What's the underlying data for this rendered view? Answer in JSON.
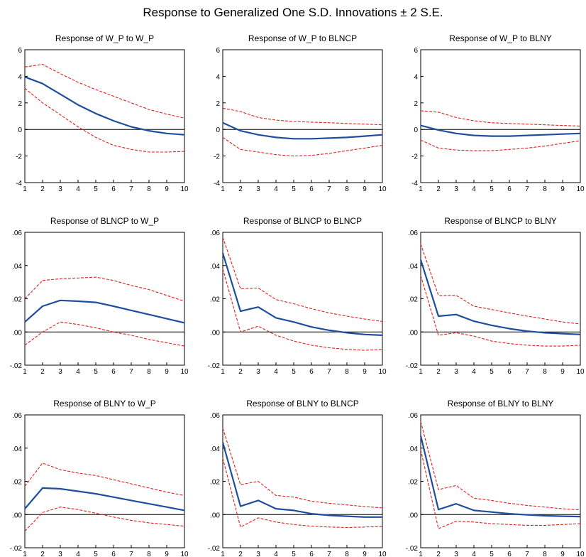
{
  "page": {
    "title": "Response to Generalized One S.D. Innovations ± 2 S.E."
  },
  "colors": {
    "response": "#1f4e9c",
    "band": "#e0201b",
    "axis": "#000000"
  },
  "chart_data": [
    {
      "type": "line",
      "title": "Response of W_P to W_P",
      "x": [
        1,
        2,
        3,
        4,
        5,
        6,
        7,
        8,
        9,
        10
      ],
      "xticks": [
        "1",
        "2",
        "3",
        "4",
        "5",
        "6",
        "7",
        "8",
        "9",
        "10"
      ],
      "ylim": [
        -4,
        6
      ],
      "yticks": [
        -4,
        -2,
        0,
        2,
        4,
        6
      ],
      "ytick_labels": [
        "-4",
        "-2",
        "0",
        "2",
        "4",
        "6"
      ],
      "series": [
        {
          "role": "response",
          "values": [
            3.95,
            3.45,
            2.65,
            1.85,
            1.2,
            0.65,
            0.2,
            -0.1,
            -0.3,
            -0.4
          ]
        },
        {
          "role": "upper",
          "values": [
            4.7,
            4.9,
            4.2,
            3.55,
            3.0,
            2.5,
            2.0,
            1.5,
            1.15,
            0.85
          ]
        },
        {
          "role": "lower",
          "values": [
            3.1,
            2.0,
            1.1,
            0.2,
            -0.6,
            -1.2,
            -1.5,
            -1.7,
            -1.7,
            -1.65
          ]
        }
      ]
    },
    {
      "type": "line",
      "title": "Response of W_P to BLNCP",
      "x": [
        1,
        2,
        3,
        4,
        5,
        6,
        7,
        8,
        9,
        10
      ],
      "xticks": [
        "1",
        "2",
        "3",
        "4",
        "5",
        "6",
        "7",
        "8",
        "9",
        "10"
      ],
      "ylim": [
        -4,
        6
      ],
      "yticks": [
        -4,
        -2,
        0,
        2,
        4,
        6
      ],
      "ytick_labels": [
        "-4",
        "-2",
        "0",
        "2",
        "4",
        "6"
      ],
      "series": [
        {
          "role": "response",
          "values": [
            0.5,
            -0.1,
            -0.4,
            -0.6,
            -0.7,
            -0.7,
            -0.65,
            -0.6,
            -0.5,
            -0.4
          ]
        },
        {
          "role": "upper",
          "values": [
            1.6,
            1.35,
            0.9,
            0.7,
            0.6,
            0.55,
            0.5,
            0.45,
            0.4,
            0.35
          ]
        },
        {
          "role": "lower",
          "values": [
            -0.6,
            -1.5,
            -1.7,
            -1.9,
            -2.0,
            -1.95,
            -1.8,
            -1.6,
            -1.4,
            -1.2
          ]
        }
      ]
    },
    {
      "type": "line",
      "title": "Response of W_P to BLNY",
      "x": [
        1,
        2,
        3,
        4,
        5,
        6,
        7,
        8,
        9,
        10
      ],
      "xticks": [
        "1",
        "2",
        "3",
        "4",
        "5",
        "6",
        "7",
        "8",
        "9",
        "10"
      ],
      "ylim": [
        -4,
        6
      ],
      "yticks": [
        -4,
        -2,
        0,
        2,
        4,
        6
      ],
      "ytick_labels": [
        "-4",
        "-2",
        "0",
        "2",
        "4",
        "6"
      ],
      "series": [
        {
          "role": "response",
          "values": [
            0.3,
            -0.05,
            -0.3,
            -0.45,
            -0.5,
            -0.5,
            -0.45,
            -0.4,
            -0.35,
            -0.3
          ]
        },
        {
          "role": "upper",
          "values": [
            1.4,
            1.3,
            0.9,
            0.65,
            0.5,
            0.45,
            0.4,
            0.35,
            0.3,
            0.25
          ]
        },
        {
          "role": "lower",
          "values": [
            -0.8,
            -1.4,
            -1.55,
            -1.6,
            -1.6,
            -1.5,
            -1.4,
            -1.25,
            -1.05,
            -0.85
          ]
        }
      ]
    },
    {
      "type": "line",
      "title": "Response of BLNCP to W_P",
      "x": [
        1,
        2,
        3,
        4,
        5,
        6,
        7,
        8,
        9,
        10
      ],
      "xticks": [
        "1",
        "2",
        "3",
        "4",
        "5",
        "6",
        "7",
        "8",
        "9",
        "10"
      ],
      "ylim": [
        -0.02,
        0.06
      ],
      "yticks": [
        -0.02,
        0,
        0.02,
        0.04,
        0.06
      ],
      "ytick_labels": [
        "-.02",
        ".00",
        ".02",
        ".04",
        ".06"
      ],
      "series": [
        {
          "role": "response",
          "values": [
            0.006,
            0.0155,
            0.019,
            0.0185,
            0.0178,
            0.0155,
            0.013,
            0.0105,
            0.008,
            0.0055
          ]
        },
        {
          "role": "upper",
          "values": [
            0.02,
            0.031,
            0.032,
            0.0325,
            0.033,
            0.031,
            0.028,
            0.0255,
            0.022,
            0.0185
          ]
        },
        {
          "role": "lower",
          "values": [
            -0.008,
            0.0,
            0.006,
            0.0045,
            0.0025,
            0.0,
            -0.002,
            -0.0045,
            -0.0065,
            -0.0085
          ]
        }
      ]
    },
    {
      "type": "line",
      "title": "Response of BLNCP to BLNCP",
      "x": [
        1,
        2,
        3,
        4,
        5,
        6,
        7,
        8,
        9,
        10
      ],
      "xticks": [
        "1",
        "2",
        "3",
        "4",
        "5",
        "6",
        "7",
        "8",
        "9",
        "10"
      ],
      "ylim": [
        -0.02,
        0.06
      ],
      "yticks": [
        -0.02,
        0,
        0.02,
        0.04,
        0.06
      ],
      "ytick_labels": [
        "-.02",
        ".00",
        ".02",
        ".04",
        ".06"
      ],
      "series": [
        {
          "role": "response",
          "values": [
            0.0475,
            0.0125,
            0.015,
            0.0085,
            0.006,
            0.003,
            0.001,
            -0.0005,
            -0.0015,
            -0.002
          ]
        },
        {
          "role": "upper",
          "values": [
            0.057,
            0.026,
            0.0265,
            0.0195,
            0.017,
            0.014,
            0.0115,
            0.0095,
            0.0078,
            0.0063
          ]
        },
        {
          "role": "lower",
          "values": [
            0.038,
            0.0,
            0.0035,
            -0.002,
            -0.0055,
            -0.008,
            -0.0095,
            -0.0105,
            -0.011,
            -0.0105
          ]
        }
      ]
    },
    {
      "type": "line",
      "title": "Response of BLNCP to BLNY",
      "x": [
        1,
        2,
        3,
        4,
        5,
        6,
        7,
        8,
        9,
        10
      ],
      "xticks": [
        "1",
        "2",
        "3",
        "4",
        "5",
        "6",
        "7",
        "8",
        "9",
        "10"
      ],
      "ylim": [
        -0.02,
        0.06
      ],
      "yticks": [
        -0.02,
        0,
        0.02,
        0.04,
        0.06
      ],
      "ytick_labels": [
        "-.02",
        ".00",
        ".02",
        ".04",
        ".06"
      ],
      "series": [
        {
          "role": "response",
          "values": [
            0.0435,
            0.0095,
            0.0105,
            0.0065,
            0.004,
            0.002,
            0.0005,
            -0.0005,
            -0.001,
            -0.0015
          ]
        },
        {
          "role": "upper",
          "values": [
            0.053,
            0.022,
            0.022,
            0.0155,
            0.0135,
            0.0115,
            0.0095,
            0.0078,
            0.006,
            0.0048
          ]
        },
        {
          "role": "lower",
          "values": [
            0.034,
            -0.002,
            -0.0005,
            -0.0025,
            -0.0055,
            -0.007,
            -0.008,
            -0.0085,
            -0.0085,
            -0.008
          ]
        }
      ]
    },
    {
      "type": "line",
      "title": "Response of BLNY to W_P",
      "x": [
        1,
        2,
        3,
        4,
        5,
        6,
        7,
        8,
        9,
        10
      ],
      "xticks": [
        "1",
        "2",
        "3",
        "4",
        "5",
        "6",
        "7",
        "8",
        "9",
        "10"
      ],
      "ylim": [
        -0.02,
        0.06
      ],
      "yticks": [
        -0.02,
        0,
        0.02,
        0.04,
        0.06
      ],
      "ytick_labels": [
        "-.02",
        ".00",
        ".02",
        ".04",
        ".06"
      ],
      "series": [
        {
          "role": "response",
          "values": [
            0.0035,
            0.016,
            0.0155,
            0.014,
            0.0125,
            0.0105,
            0.0085,
            0.0065,
            0.0045,
            0.0025
          ]
        },
        {
          "role": "upper",
          "values": [
            0.017,
            0.031,
            0.027,
            0.025,
            0.0235,
            0.021,
            0.0185,
            0.016,
            0.0135,
            0.0115
          ]
        },
        {
          "role": "lower",
          "values": [
            -0.01,
            0.0012,
            0.0045,
            0.003,
            0.0008,
            -0.0015,
            -0.0035,
            -0.005,
            -0.006,
            -0.007
          ]
        }
      ]
    },
    {
      "type": "line",
      "title": "Response of BLNY to BLNCP",
      "x": [
        1,
        2,
        3,
        4,
        5,
        6,
        7,
        8,
        9,
        10
      ],
      "xticks": [
        "1",
        "2",
        "3",
        "4",
        "5",
        "6",
        "7",
        "8",
        "9",
        "10"
      ],
      "ylim": [
        -0.02,
        0.06
      ],
      "yticks": [
        -0.02,
        0,
        0.02,
        0.04,
        0.06
      ],
      "ytick_labels": [
        "-.02",
        ".00",
        ".02",
        ".04",
        ".06"
      ],
      "series": [
        {
          "role": "response",
          "values": [
            0.0435,
            0.005,
            0.0085,
            0.0035,
            0.0025,
            0.0005,
            -0.0005,
            -0.001,
            -0.0015,
            -0.0015
          ]
        },
        {
          "role": "upper",
          "values": [
            0.052,
            0.018,
            0.02,
            0.0115,
            0.0105,
            0.008,
            0.0068,
            0.0058,
            0.0048,
            0.004
          ]
        },
        {
          "role": "lower",
          "values": [
            0.034,
            -0.0075,
            -0.002,
            -0.0045,
            -0.006,
            -0.007,
            -0.0075,
            -0.0078,
            -0.0075,
            -0.0072
          ]
        }
      ]
    },
    {
      "type": "line",
      "title": "Response of BLNY to BLNY",
      "x": [
        1,
        2,
        3,
        4,
        5,
        6,
        7,
        8,
        9,
        10
      ],
      "xticks": [
        "1",
        "2",
        "3",
        "4",
        "5",
        "6",
        "7",
        "8",
        "9",
        "10"
      ],
      "ylim": [
        -0.02,
        0.06
      ],
      "yticks": [
        -0.02,
        0,
        0.02,
        0.04,
        0.06
      ],
      "ytick_labels": [
        "-.02",
        ".00",
        ".02",
        ".04",
        ".06"
      ],
      "series": [
        {
          "role": "response",
          "values": [
            0.0475,
            0.003,
            0.0065,
            0.0025,
            0.0015,
            0.0005,
            -0.0002,
            -0.0007,
            -0.001,
            -0.0012
          ]
        },
        {
          "role": "upper",
          "values": [
            0.056,
            0.015,
            0.0175,
            0.0098,
            0.0085,
            0.0068,
            0.0055,
            0.0045,
            0.0035,
            0.0028
          ]
        },
        {
          "role": "lower",
          "values": [
            0.039,
            -0.0085,
            -0.004,
            -0.0045,
            -0.0055,
            -0.006,
            -0.0065,
            -0.0065,
            -0.006,
            -0.0055
          ]
        }
      ]
    }
  ]
}
